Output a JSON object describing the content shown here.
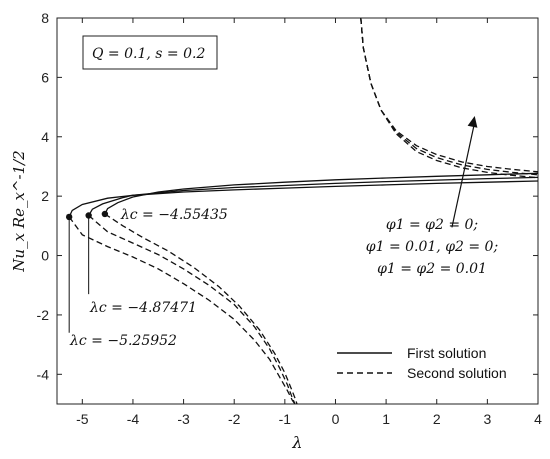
{
  "chart_data": {
    "type": "line",
    "xlabel": "λ",
    "ylabel": "Nu_x Re_x^-1/2",
    "xlim": [
      -5.5,
      4
    ],
    "ylim": [
      -5,
      8
    ],
    "x_ticks": [
      "-5",
      "-4",
      "-3",
      "-2",
      "-1",
      "0",
      "1",
      "2",
      "3",
      "4"
    ],
    "y_ticks": [
      "-4",
      "-2",
      "0",
      "2",
      "4",
      "6",
      "8"
    ],
    "grid": false,
    "legend_position": "bottom-right",
    "params_box": "Q = 0.1, s = 0.2",
    "legend": [
      {
        "label": "First solution",
        "style": "solid"
      },
      {
        "label": "Second solution",
        "style": "dashed"
      }
    ],
    "cases_note": [
      "φ1 = φ2 = 0;",
      "φ1 = 0.01, φ2 = 0;",
      "φ1 = φ2 = 0.01"
    ],
    "critical_points": [
      {
        "lambda_c": -5.25952,
        "nu": 1.3,
        "label": "λc = −5.25952"
      },
      {
        "lambda_c": -4.87471,
        "nu": 1.35,
        "label": "λc = −4.87471"
      },
      {
        "lambda_c": -4.55435,
        "nu": 1.4,
        "label": "λc = −4.55435"
      }
    ],
    "series": [
      {
        "style": "solid",
        "x": [
          -5.25952,
          -5.2,
          -5.0,
          -4.5,
          -4.0,
          -3.0,
          -2.0,
          -1.0,
          0,
          1.0,
          2.0,
          3.0,
          4.0
        ],
        "y": [
          1.3,
          1.52,
          1.72,
          1.93,
          2.03,
          2.14,
          2.21,
          2.27,
          2.33,
          2.38,
          2.43,
          2.47,
          2.51
        ]
      },
      {
        "style": "solid",
        "x": [
          -4.87471,
          -4.8,
          -4.6,
          -4.2,
          -4.0,
          -3.0,
          -2.0,
          -1.0,
          0,
          1.0,
          2.0,
          3.0,
          4.0
        ],
        "y": [
          1.35,
          1.56,
          1.74,
          1.95,
          2.03,
          2.19,
          2.29,
          2.36,
          2.43,
          2.49,
          2.54,
          2.59,
          2.63
        ]
      },
      {
        "style": "solid",
        "x": [
          -4.55435,
          -4.5,
          -4.3,
          -4.0,
          -3.5,
          -3.0,
          -2.0,
          -1.0,
          0,
          1.0,
          2.0,
          3.0,
          4.0
        ],
        "y": [
          1.4,
          1.58,
          1.78,
          1.97,
          2.14,
          2.24,
          2.38,
          2.47,
          2.55,
          2.61,
          2.67,
          2.72,
          2.77
        ]
      },
      {
        "style": "dashed",
        "x": [
          -5.25952,
          -5.0,
          -4.5,
          -4.0,
          -3.5,
          -3.0,
          -2.5,
          -2.0,
          -1.6,
          -1.3,
          -1.1,
          -0.95,
          -0.85,
          -0.8
        ],
        "y": [
          1.3,
          0.7,
          0.3,
          -0.05,
          -0.45,
          -0.95,
          -1.5,
          -2.15,
          -2.85,
          -3.5,
          -4.1,
          -4.55,
          -4.88,
          -5.0
        ]
      },
      {
        "style": "dashed",
        "x": [
          -4.87471,
          -4.5,
          -4.0,
          -3.5,
          -3.0,
          -2.5,
          -2.0,
          -1.6,
          -1.3,
          -1.1,
          -0.95,
          -0.85,
          -0.8
        ],
        "y": [
          1.35,
          0.8,
          0.42,
          0.03,
          -0.45,
          -1.0,
          -1.65,
          -2.4,
          -3.15,
          -3.8,
          -4.35,
          -4.8,
          -5.0
        ]
      },
      {
        "style": "dashed",
        "x": [
          -4.55435,
          -4.2,
          -3.8,
          -3.3,
          -2.8,
          -2.3,
          -1.9,
          -1.5,
          -1.2,
          -1.0,
          -0.88,
          -0.8,
          -0.76
        ],
        "y": [
          1.4,
          1.0,
          0.6,
          0.15,
          -0.4,
          -1.05,
          -1.7,
          -2.5,
          -3.3,
          -3.95,
          -4.45,
          -4.8,
          -5.0
        ]
      },
      {
        "style": "dashed",
        "x": [
          0.5,
          0.55,
          0.7,
          0.9,
          1.2,
          1.6,
          2.0,
          2.5,
          3.0,
          3.5,
          4.0
        ],
        "y": [
          8.0,
          7.0,
          5.8,
          4.9,
          4.1,
          3.5,
          3.2,
          2.95,
          2.8,
          2.7,
          2.62
        ]
      },
      {
        "style": "dashed",
        "x": [
          0.5,
          0.55,
          0.7,
          0.9,
          1.2,
          1.6,
          2.0,
          2.5,
          3.0,
          3.5,
          4.0
        ],
        "y": [
          8.0,
          7.0,
          5.8,
          4.9,
          4.15,
          3.6,
          3.3,
          3.05,
          2.9,
          2.8,
          2.72
        ]
      },
      {
        "style": "dashed",
        "x": [
          0.5,
          0.55,
          0.7,
          0.9,
          1.2,
          1.6,
          2.0,
          2.5,
          3.0,
          3.5,
          4.0
        ],
        "y": [
          8.0,
          7.0,
          5.8,
          4.9,
          4.2,
          3.7,
          3.4,
          3.15,
          3.0,
          2.9,
          2.82
        ]
      }
    ]
  }
}
